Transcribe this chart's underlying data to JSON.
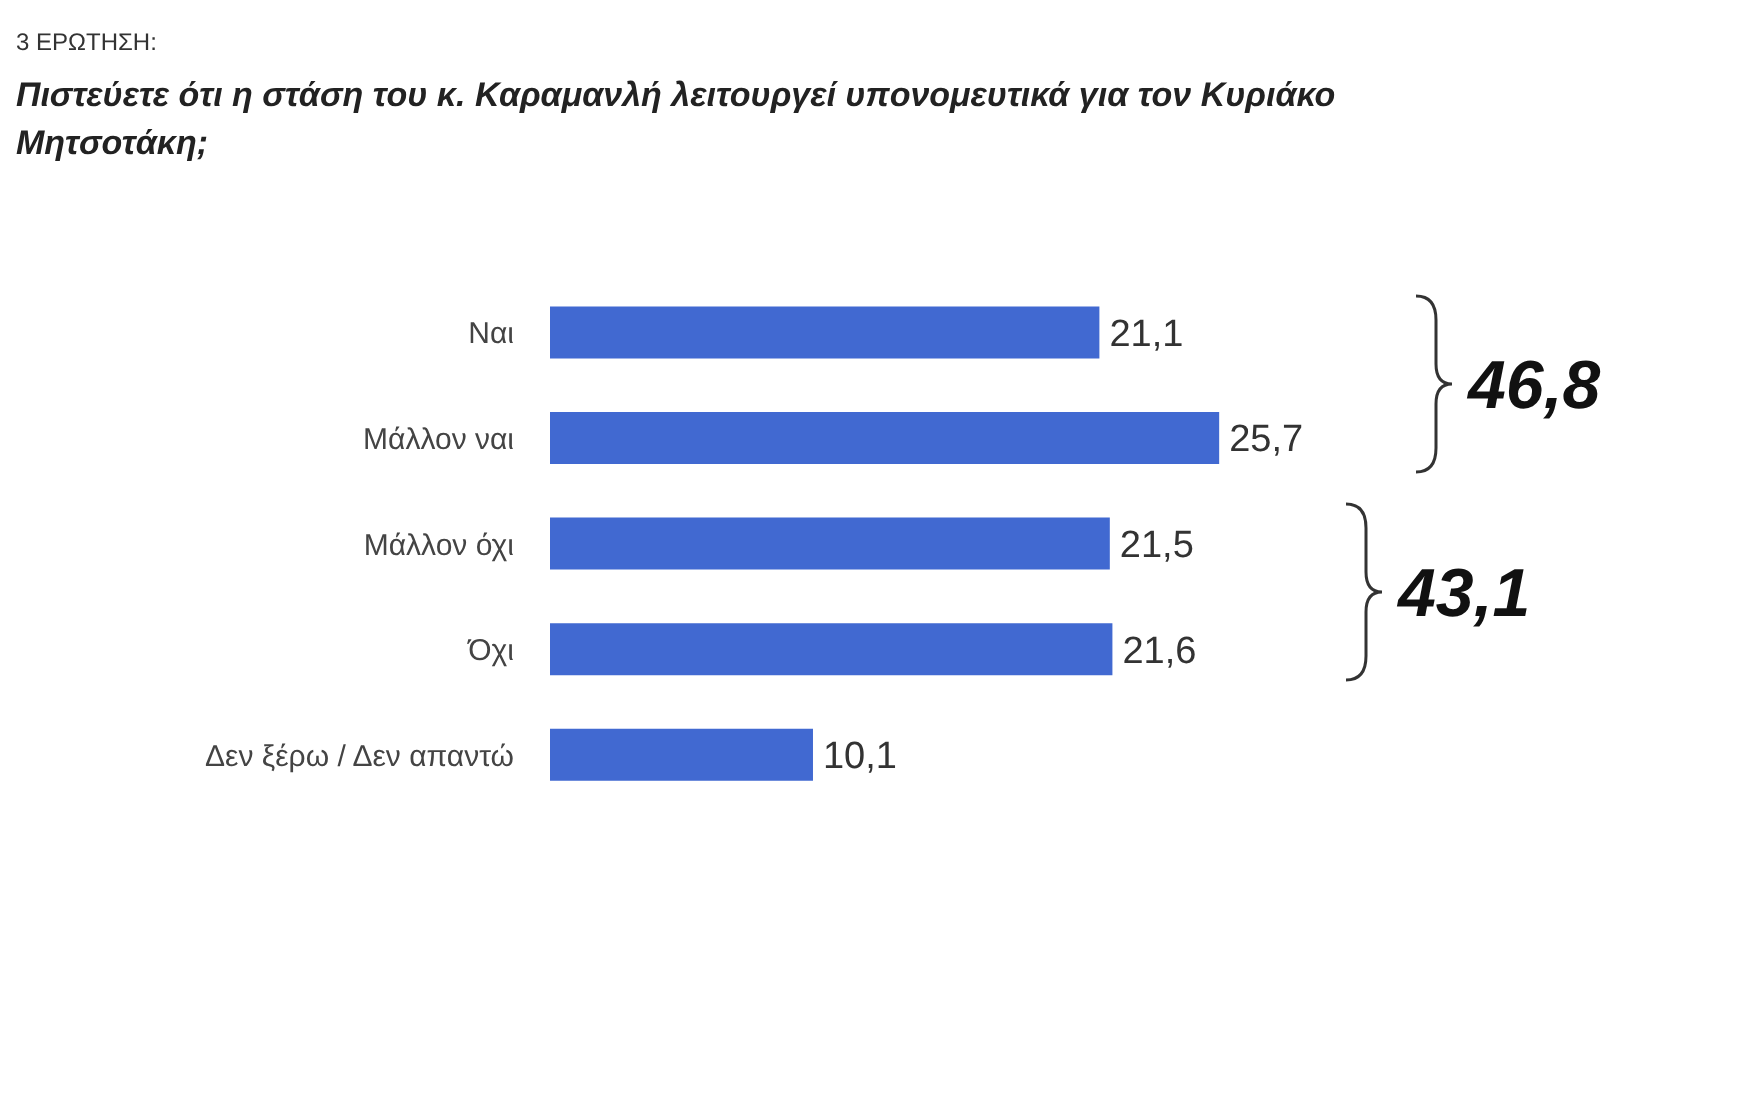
{
  "chart_data": {
    "type": "bar",
    "orientation": "horizontal",
    "subtitle": "3 ΕΡΩΤΗΣΗ:",
    "title": "Πιστεύετε ότι η στάση του κ. Καραμανλή λειτουργεί υπονομευτικά για τον Κυριάκο Μητσοτάκη;",
    "categories": [
      "Ναι",
      "Μάλλον ναι",
      "Μάλλον όχι",
      "Όχι",
      "Δεν ξέρω / Δεν απαντώ"
    ],
    "values": [
      21.1,
      25.7,
      21.5,
      21.6,
      10.1
    ],
    "color": "#4169d1",
    "value_labels": [
      "21,1",
      "25,7",
      "21,5",
      "21,6",
      "10,1"
    ],
    "annotations": [
      "46,8",
      "43,1"
    ]
  }
}
